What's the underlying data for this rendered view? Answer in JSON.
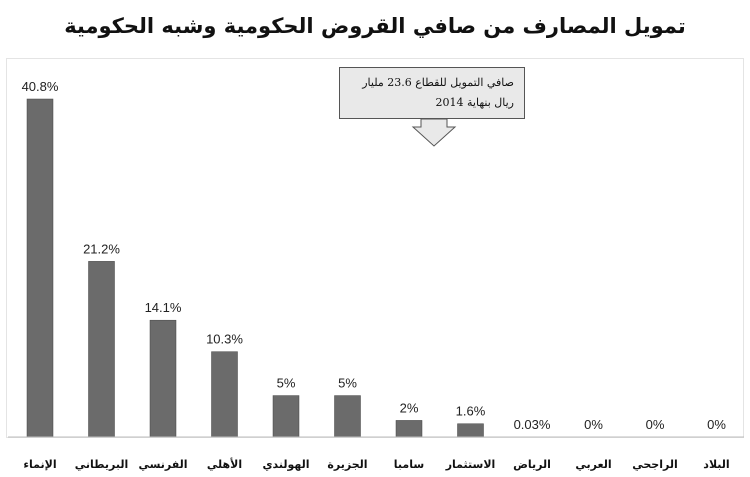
{
  "chart_data": {
    "type": "bar",
    "title": "تمويل المصارف من صافي القروض الحكومية وشبه الحكومية",
    "categories": [
      "الإنماء",
      "البريطاني",
      "الفرنسي",
      "الأهلي",
      "الهولندي",
      "الجزيرة",
      "سامبا",
      "الاستثمار",
      "الرياض",
      "العربي",
      "الراجحي",
      "البلاد"
    ],
    "values": [
      40.8,
      21.2,
      14.1,
      10.3,
      5,
      5,
      2,
      1.6,
      0.03,
      0,
      0,
      0
    ],
    "value_labels": [
      "40.8%",
      "21.2%",
      "14.1%",
      "10.3%",
      "5%",
      "5%",
      "2%",
      "1.6%",
      "0.03%",
      "0%",
      "0%",
      "0%"
    ],
    "xlabel": "",
    "ylabel": "",
    "ylim": [
      0,
      42
    ],
    "grid": false,
    "bar_color": "#6b6b6b",
    "annotation": {
      "line1": "صافي التمويل للقطاع 23.6 مليار",
      "line2": "ريال بنهاية 2014"
    }
  }
}
